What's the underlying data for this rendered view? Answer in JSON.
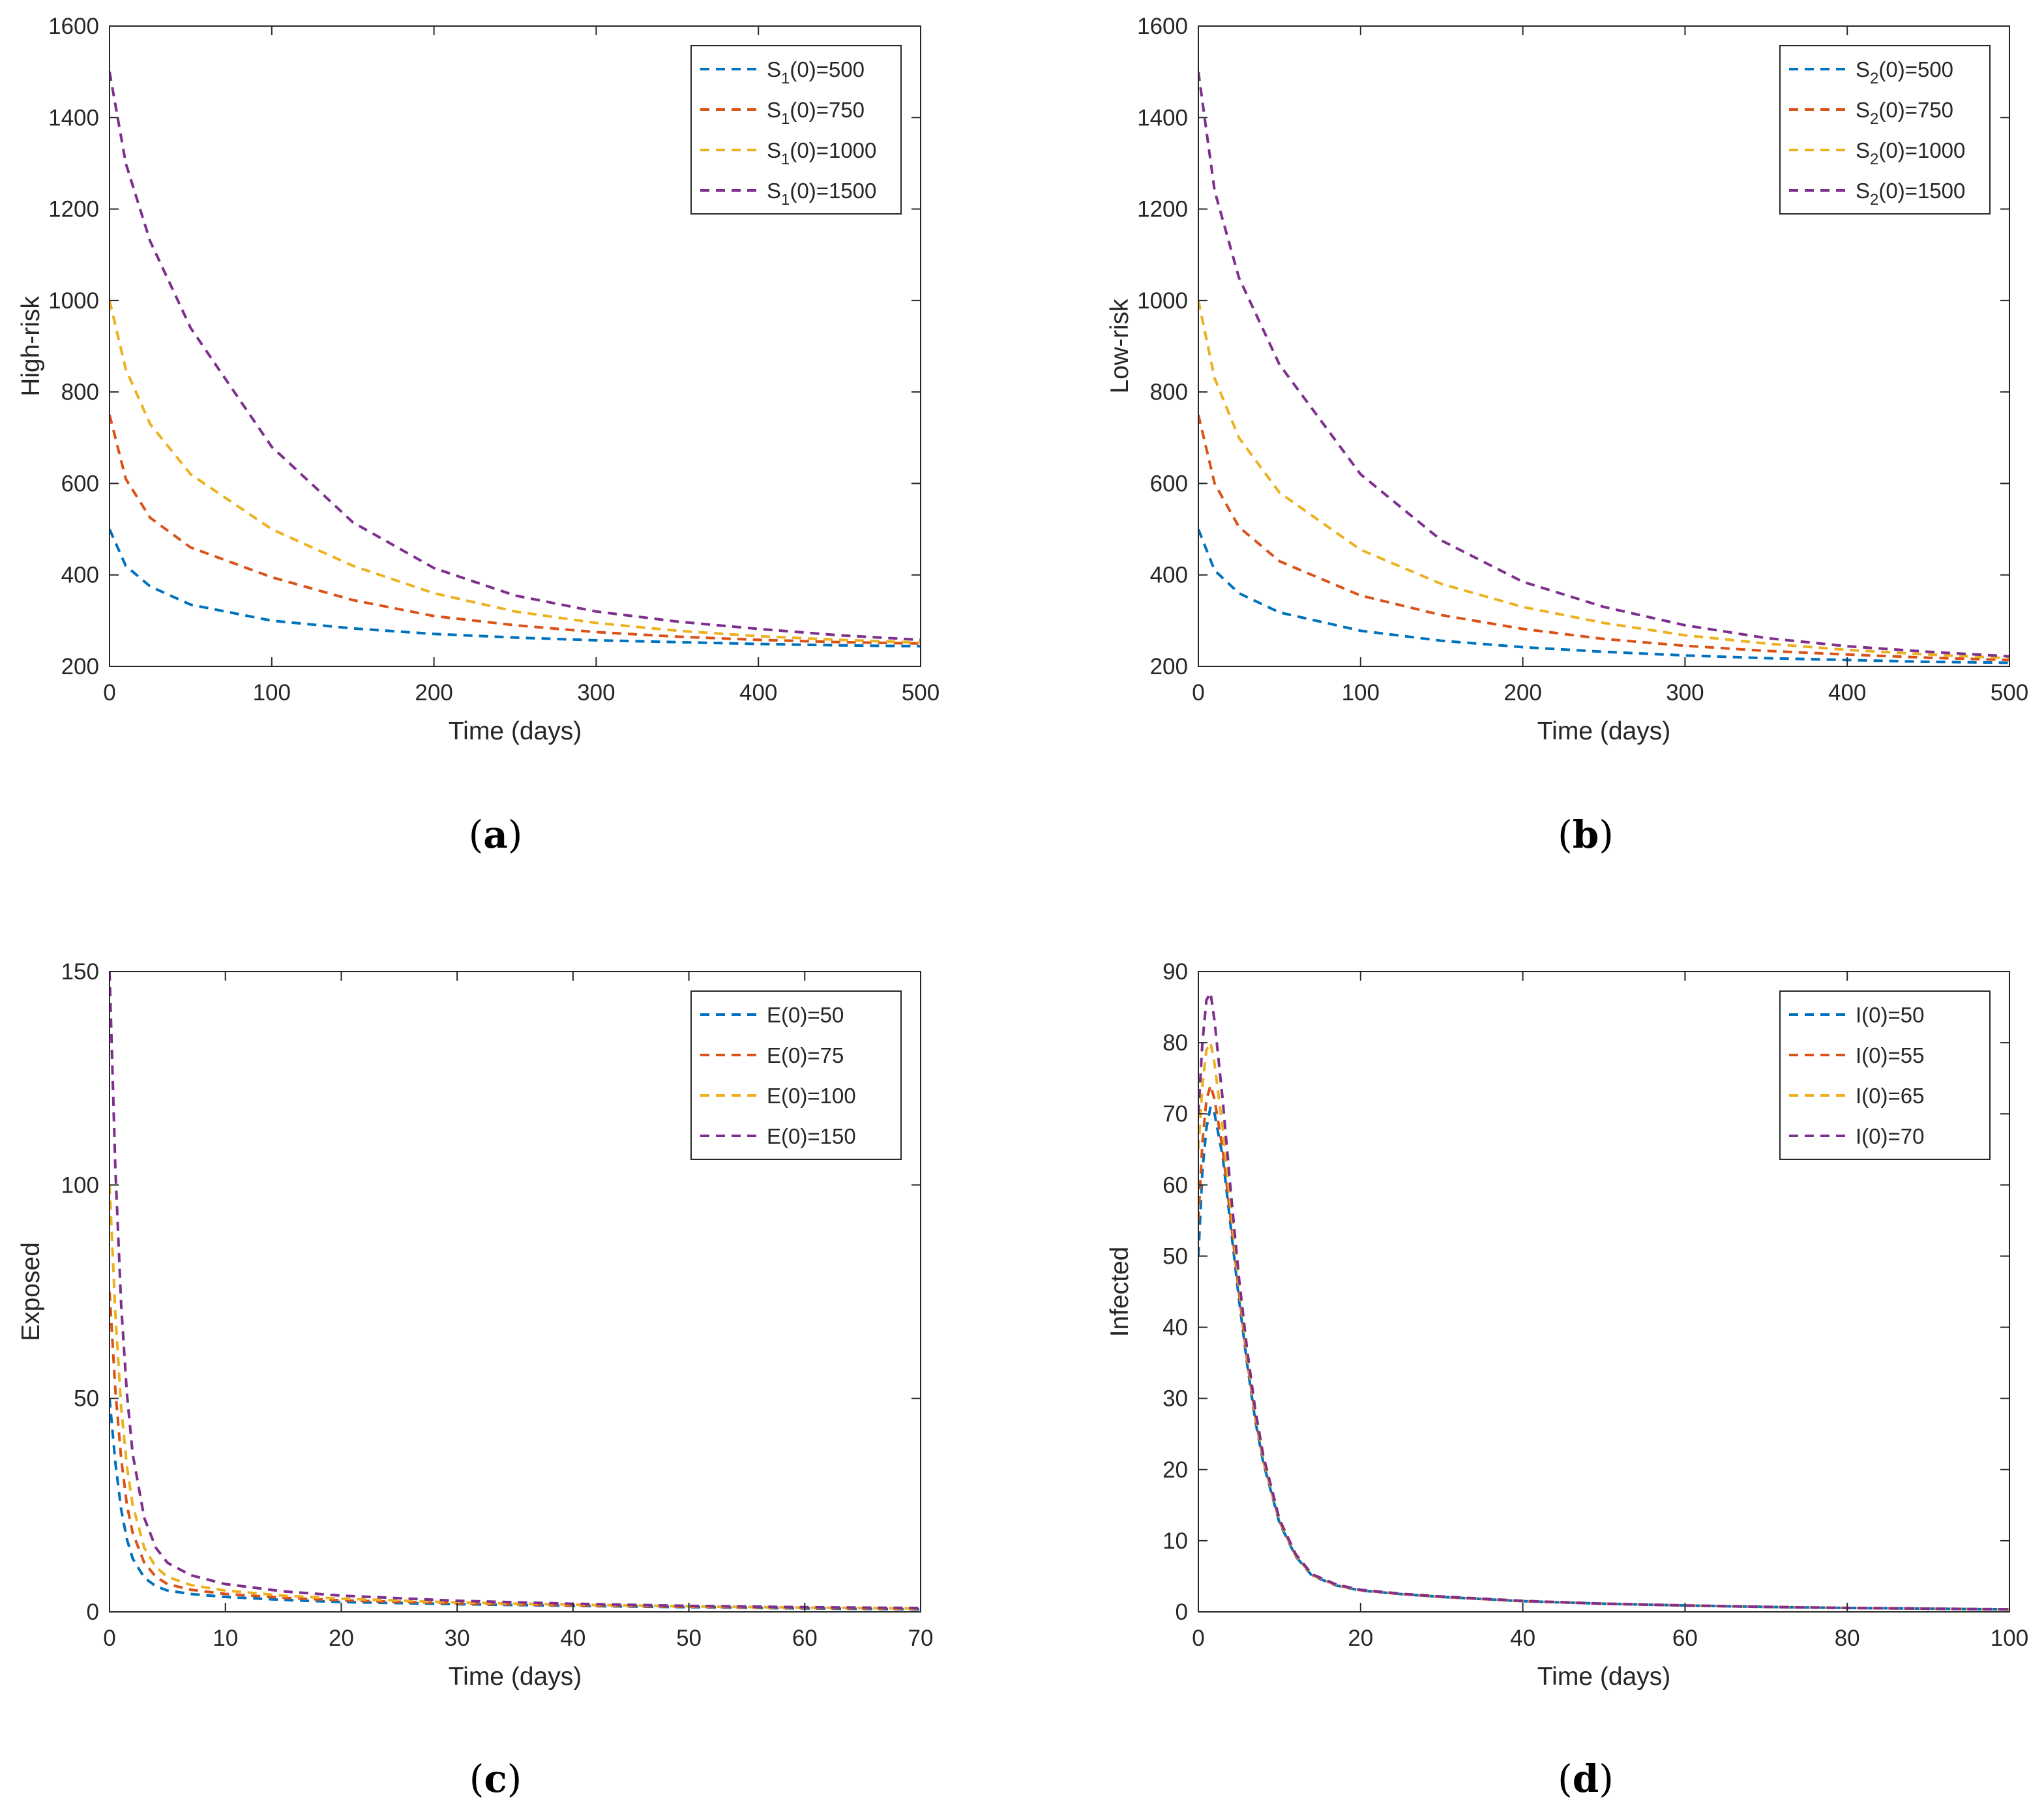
{
  "colors": {
    "series": [
      "#0072BD",
      "#D95319",
      "#EDB120",
      "#7E2F8E"
    ],
    "axis": "#262626",
    "legend_border": "#262626"
  },
  "chart_data": [
    {
      "type": "line",
      "id": "a",
      "caption": "a",
      "xlabel": "Time (days)",
      "ylabel": "High-risk",
      "xlim": [
        0,
        500
      ],
      "ylim": [
        200,
        1600
      ],
      "xticks": [
        0,
        100,
        200,
        300,
        400,
        500
      ],
      "yticks": [
        200,
        400,
        600,
        800,
        1000,
        1200,
        1400,
        1600
      ],
      "legend_position": "top-right",
      "line_style": "dashed",
      "series": [
        {
          "name": "S1(0)=500",
          "label_base": "S",
          "label_sub": "1",
          "label_rest": "(0)=500",
          "x": [
            0,
            10,
            25,
            50,
            100,
            150,
            200,
            250,
            300,
            350,
            400,
            450,
            500
          ],
          "y": [
            500,
            420,
            375,
            335,
            300,
            283,
            271,
            263,
            257,
            253,
            249,
            246,
            244
          ]
        },
        {
          "name": "S1(0)=750",
          "label_base": "S",
          "label_sub": "1",
          "label_rest": "(0)=750",
          "x": [
            0,
            10,
            25,
            50,
            100,
            150,
            200,
            250,
            300,
            350,
            400,
            450,
            500
          ],
          "y": [
            750,
            610,
            525,
            460,
            395,
            345,
            310,
            290,
            275,
            265,
            258,
            253,
            250
          ]
        },
        {
          "name": "S1(0)=1000",
          "label_base": "S",
          "label_sub": "1",
          "label_rest": "(0)=1000",
          "x": [
            0,
            10,
            25,
            50,
            100,
            150,
            200,
            250,
            300,
            350,
            400,
            450,
            500
          ],
          "y": [
            1000,
            850,
            730,
            620,
            500,
            420,
            360,
            320,
            295,
            278,
            266,
            258,
            252
          ]
        },
        {
          "name": "S1(0)=1500",
          "label_base": "S",
          "label_sub": "1",
          "label_rest": "(0)=1500",
          "x": [
            0,
            10,
            25,
            50,
            100,
            150,
            200,
            250,
            300,
            350,
            400,
            450,
            500
          ],
          "y": [
            1500,
            1300,
            1130,
            940,
            680,
            515,
            415,
            355,
            320,
            298,
            282,
            268,
            258
          ]
        }
      ]
    },
    {
      "type": "line",
      "id": "b",
      "caption": "b",
      "xlabel": "Time (days)",
      "ylabel": "Low-risk",
      "xlim": [
        0,
        500
      ],
      "ylim": [
        200,
        1600
      ],
      "xticks": [
        0,
        100,
        200,
        300,
        400,
        500
      ],
      "yticks": [
        200,
        400,
        600,
        800,
        1000,
        1200,
        1400,
        1600
      ],
      "legend_position": "top-right",
      "line_style": "dashed",
      "series": [
        {
          "name": "S2(0)=500",
          "label_base": "S",
          "label_sub": "2",
          "label_rest": "(0)=500",
          "x": [
            0,
            10,
            25,
            50,
            100,
            150,
            200,
            250,
            300,
            350,
            400,
            450,
            500
          ],
          "y": [
            500,
            410,
            360,
            318,
            278,
            256,
            242,
            232,
            224,
            218,
            214,
            210,
            208
          ]
        },
        {
          "name": "S2(0)=750",
          "label_base": "S",
          "label_sub": "2",
          "label_rest": "(0)=750",
          "x": [
            0,
            10,
            25,
            50,
            100,
            150,
            200,
            250,
            300,
            350,
            400,
            450,
            500
          ],
          "y": [
            750,
            600,
            505,
            430,
            355,
            312,
            282,
            260,
            245,
            234,
            226,
            219,
            214
          ]
        },
        {
          "name": "S2(0)=1000",
          "label_base": "S",
          "label_sub": "2",
          "label_rest": "(0)=1000",
          "x": [
            0,
            10,
            25,
            50,
            100,
            150,
            200,
            250,
            300,
            350,
            400,
            450,
            500
          ],
          "y": [
            1000,
            830,
            700,
            580,
            455,
            380,
            330,
            295,
            268,
            250,
            236,
            226,
            218
          ]
        },
        {
          "name": "S2(0)=1500",
          "label_base": "S",
          "label_sub": "2",
          "label_rest": "(0)=1500",
          "x": [
            0,
            10,
            25,
            50,
            100,
            150,
            200,
            250,
            300,
            350,
            400,
            450,
            500
          ],
          "y": [
            1500,
            1240,
            1050,
            860,
            620,
            475,
            385,
            330,
            290,
            262,
            244,
            232,
            222
          ]
        }
      ]
    },
    {
      "type": "line",
      "id": "c",
      "caption": "c",
      "xlabel": "Time (days)",
      "ylabel": "Exposed",
      "xlim": [
        0,
        70
      ],
      "ylim": [
        0,
        150
      ],
      "xticks": [
        0,
        10,
        20,
        30,
        40,
        50,
        60,
        70
      ],
      "yticks": [
        0,
        50,
        100,
        150
      ],
      "legend_position": "top-right",
      "line_style": "dashed",
      "series": [
        {
          "name": "E(0)=50",
          "label_base": "E(0)=50",
          "label_sub": "",
          "label_rest": "",
          "x": [
            0,
            0.5,
            1,
            1.5,
            2,
            3,
            4,
            5,
            7,
            10,
            15,
            20,
            30,
            40,
            50,
            60,
            70
          ],
          "y": [
            50,
            35,
            24,
            17,
            12.5,
            8,
            6,
            5,
            4.2,
            3.5,
            2.8,
            2.3,
            1.8,
            1.4,
            1.1,
            0.8,
            0.6
          ]
        },
        {
          "name": "E(0)=75",
          "label_base": "E(0)=75",
          "label_sub": "",
          "label_rest": "",
          "x": [
            0,
            0.5,
            1,
            1.5,
            2,
            3,
            4,
            5,
            7,
            10,
            15,
            20,
            30,
            40,
            50,
            60,
            70
          ],
          "y": [
            75,
            52,
            36,
            25,
            18.5,
            11.5,
            8.2,
            6.5,
            5.2,
            4.2,
            3.3,
            2.7,
            2,
            1.5,
            1.2,
            0.9,
            0.7
          ]
        },
        {
          "name": "E(0)=100",
          "label_base": "E(0)=100",
          "label_sub": "",
          "label_rest": "",
          "x": [
            0,
            0.5,
            1,
            1.5,
            2,
            3,
            4,
            5,
            7,
            10,
            15,
            20,
            30,
            40,
            50,
            60,
            70
          ],
          "y": [
            100,
            70,
            48,
            34,
            25,
            15,
            10.5,
            8.2,
            6.3,
            5,
            3.8,
            3.1,
            2.2,
            1.7,
            1.3,
            1,
            0.8
          ]
        },
        {
          "name": "E(0)=150",
          "label_base": "E(0)=150",
          "label_sub": "",
          "label_rest": "",
          "x": [
            0,
            0.5,
            1,
            1.5,
            2,
            3,
            4,
            5,
            7,
            10,
            15,
            20,
            30,
            40,
            50,
            60,
            70
          ],
          "y": [
            150,
            104,
            72,
            51,
            37,
            22,
            15,
            11.5,
            8.6,
            6.5,
            4.8,
            3.8,
            2.6,
            1.9,
            1.4,
            1.1,
            0.9
          ]
        }
      ]
    },
    {
      "type": "line",
      "id": "d",
      "caption": "d",
      "xlabel": "Time (days)",
      "ylabel": "Infected",
      "xlim": [
        0,
        100
      ],
      "ylim": [
        0,
        90
      ],
      "xticks": [
        0,
        20,
        40,
        60,
        80,
        100
      ],
      "yticks": [
        0,
        10,
        20,
        30,
        40,
        50,
        60,
        70,
        80,
        90
      ],
      "legend_position": "top-right",
      "line_style": "dashed",
      "series": [
        {
          "name": "I(0)=50",
          "label_base": "I(0)=50",
          "label_sub": "",
          "label_rest": "",
          "x": [
            0,
            0.5,
            1,
            1.5,
            2,
            3,
            4,
            5,
            6,
            7,
            8,
            10,
            12,
            14,
            17,
            20,
            25,
            30,
            40,
            50,
            60,
            70,
            80,
            90,
            100
          ],
          "y": [
            50,
            62,
            68,
            71,
            70,
            64,
            54,
            44,
            35,
            27,
            21,
            12.5,
            7.8,
            5.1,
            3.7,
            3,
            2.5,
            2.1,
            1.5,
            1.15,
            0.9,
            0.7,
            0.55,
            0.45,
            0.35
          ]
        },
        {
          "name": "I(0)=55",
          "label_base": "I(0)=55",
          "label_sub": "",
          "label_rest": "",
          "x": [
            0,
            0.5,
            1,
            1.5,
            2,
            3,
            4,
            5,
            6,
            7,
            8,
            10,
            12,
            14,
            17,
            20,
            25,
            30,
            40,
            50,
            60,
            70,
            80,
            90,
            100
          ],
          "y": [
            55,
            66,
            72,
            74,
            72,
            65,
            55,
            45,
            35.5,
            27.5,
            21.3,
            12.7,
            7.9,
            5.2,
            3.75,
            3.05,
            2.5,
            2.1,
            1.5,
            1.15,
            0.9,
            0.7,
            0.55,
            0.45,
            0.35
          ]
        },
        {
          "name": "I(0)=65",
          "label_base": "I(0)=65",
          "label_sub": "",
          "label_rest": "",
          "x": [
            0,
            0.5,
            1,
            1.5,
            2,
            3,
            4,
            5,
            6,
            7,
            8,
            10,
            12,
            14,
            17,
            20,
            25,
            30,
            40,
            50,
            60,
            70,
            80,
            90,
            100
          ],
          "y": [
            65,
            74,
            79,
            80,
            77,
            68,
            57,
            46,
            36,
            28,
            21.6,
            12.8,
            8,
            5.25,
            3.8,
            3.1,
            2.55,
            2.15,
            1.55,
            1.15,
            0.9,
            0.7,
            0.55,
            0.45,
            0.35
          ]
        },
        {
          "name": "I(0)=70",
          "label_base": "I(0)=70",
          "label_sub": "",
          "label_rest": "",
          "x": [
            0,
            0.5,
            1,
            1.5,
            2,
            3,
            4,
            5,
            6,
            7,
            8,
            10,
            12,
            14,
            17,
            20,
            25,
            30,
            40,
            50,
            60,
            70,
            80,
            90,
            100
          ],
          "y": [
            70,
            80,
            86,
            87,
            83,
            72,
            59,
            47,
            37,
            28.5,
            22,
            13,
            8.1,
            5.3,
            3.85,
            3.1,
            2.55,
            2.15,
            1.55,
            1.15,
            0.9,
            0.7,
            0.55,
            0.45,
            0.35
          ]
        }
      ]
    }
  ]
}
